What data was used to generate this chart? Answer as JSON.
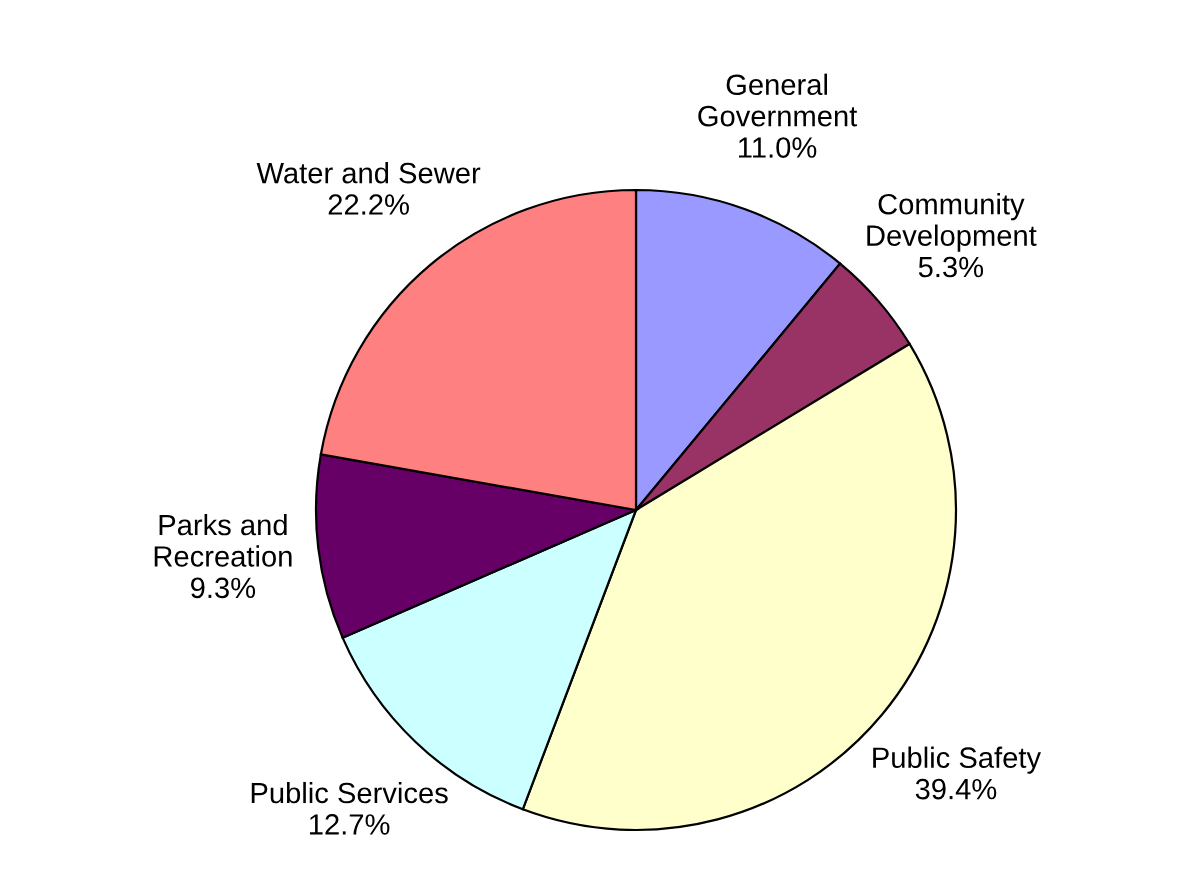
{
  "chart_data": {
    "type": "pie",
    "categories": [
      "General\nGovernment",
      "Community\nDevelopment",
      "Public Safety",
      "Public Services",
      "Parks and\nRecreation",
      "Water and Sewer"
    ],
    "values": [
      11.0,
      5.3,
      39.4,
      12.7,
      9.3,
      22.2
    ],
    "value_labels": [
      "11.0%",
      "5.3%",
      "39.4%",
      "12.7%",
      "9.3%",
      "22.2%"
    ],
    "colors": [
      "#9999ff",
      "#993366",
      "#ffffcc",
      "#ccffff",
      "#660066",
      "#ff8080"
    ],
    "legend": false
  }
}
